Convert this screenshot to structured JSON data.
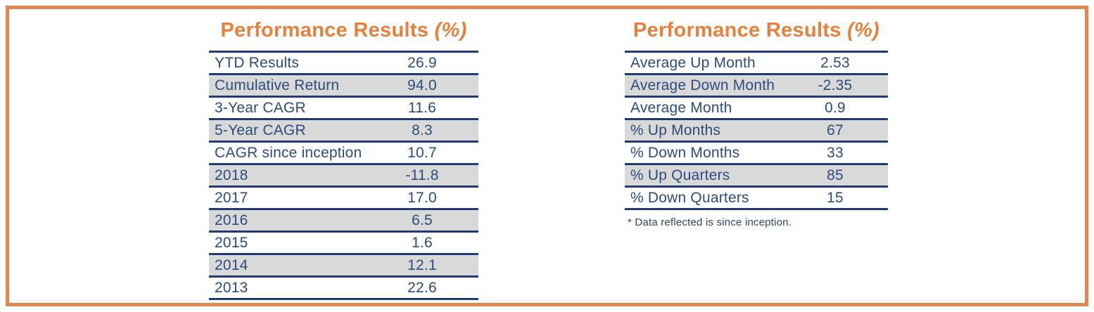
{
  "colors": {
    "frame_orange": "#DC8A4E",
    "title_orange": "#E8803B",
    "navy_text": "#2E4B7D",
    "navy_line": "#1F3C6E",
    "row_shade": "#D9D9D9"
  },
  "left_panel": {
    "title": "Performance Results",
    "title_suffix": "(%)",
    "rows": [
      {
        "label": "YTD Results",
        "value": "26.9"
      },
      {
        "label": "Cumulative Return",
        "value": "94.0"
      },
      {
        "label": "3-Year CAGR",
        "value": "11.6"
      },
      {
        "label": "5-Year CAGR",
        "value": "8.3"
      },
      {
        "label": "CAGR since inception",
        "value": "10.7"
      },
      {
        "label": "2018",
        "value": "-11.8"
      },
      {
        "label": "2017",
        "value": "17.0"
      },
      {
        "label": "2016",
        "value": "6.5"
      },
      {
        "label": "2015",
        "value": "1.6"
      },
      {
        "label": "2014",
        "value": "12.1"
      },
      {
        "label": "2013",
        "value": "22.6"
      }
    ]
  },
  "right_panel": {
    "title": "Performance Results",
    "title_suffix": "(%)",
    "rows": [
      {
        "label": "Average Up Month",
        "value": "2.53"
      },
      {
        "label": "Average Down Month",
        "value": "-2.35"
      },
      {
        "label": "Average Month",
        "value": "0.9"
      },
      {
        "label": "% Up Months",
        "value": "67"
      },
      {
        "label": "% Down Months",
        "value": "33"
      },
      {
        "label": "% Up Quarters",
        "value": "85"
      },
      {
        "label": "% Down Quarters",
        "value": "15"
      }
    ],
    "footnote": "* Data reflected is since inception."
  }
}
